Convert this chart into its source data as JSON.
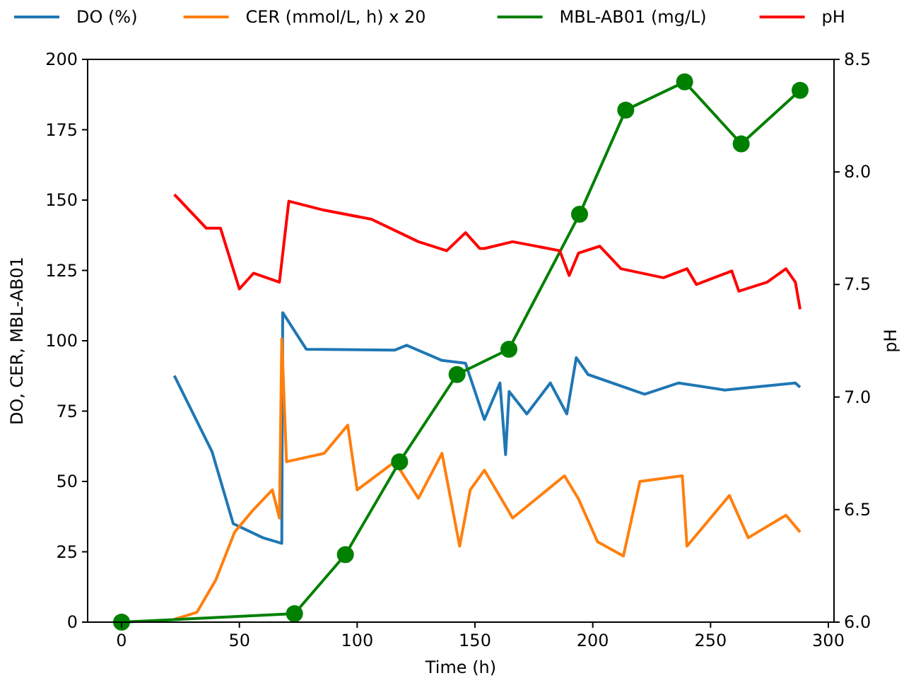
{
  "chart_data": {
    "type": "line",
    "xlabel": "Time (h)",
    "ylabel": "DO, CER, MBL-AB01",
    "y2label": "pH",
    "legend": "top",
    "grid": false,
    "xlim": [
      -14.4,
      302.4
    ],
    "xticks": [
      0,
      50,
      100,
      150,
      200,
      250,
      300
    ],
    "ylim": [
      0,
      200
    ],
    "yticks": [
      0,
      25,
      50,
      75,
      100,
      125,
      150,
      175,
      200
    ],
    "y2lim": [
      6,
      8.5
    ],
    "y2ticks": [
      {
        "value": 6,
        "label": "6.0"
      },
      {
        "value": 6.5,
        "label": "6.5"
      },
      {
        "value": 7,
        "label": "7.0"
      },
      {
        "value": 7.5,
        "label": "7.5"
      },
      {
        "value": 8,
        "label": "8.0"
      },
      {
        "value": 8.5,
        "label": "8.5"
      }
    ],
    "series": [
      {
        "name": "DO (%)",
        "color": "#1f77b4",
        "marker": "none",
        "x": [
          22.4,
          38.4,
          47.4,
          60,
          68,
          68.4,
          78.4,
          116,
          121,
          136,
          146,
          152,
          154,
          160.6,
          163,
          164.5,
          172,
          182,
          189,
          193,
          198,
          222,
          236.5,
          256,
          286,
          288
        ],
        "values": [
          87.6,
          60.6,
          35,
          30,
          28,
          110,
          97,
          96.7,
          98.4,
          93,
          92,
          77,
          72,
          85,
          59.5,
          82,
          74,
          85,
          74,
          94,
          88,
          81,
          85,
          82.5,
          85,
          83.5
        ]
      },
      {
        "name": "CER (mmol/L, h) x 20",
        "color": "#ff7f0e",
        "marker": "none",
        "x": [
          22.4,
          32,
          40,
          48,
          56,
          64,
          67,
          68,
          70,
          86,
          96,
          100,
          116,
          126,
          136,
          143.5,
          148,
          154,
          166,
          188,
          194,
          202,
          213,
          220,
          238,
          240,
          258,
          266,
          282,
          288
        ],
        "values": [
          1,
          3.5,
          15,
          32,
          40,
          47,
          37,
          100.7,
          57,
          60,
          70,
          47,
          57,
          44,
          60,
          27,
          47,
          54,
          37,
          52,
          43.7,
          28.6,
          23.5,
          50,
          52,
          27,
          45,
          30,
          38,
          32
        ]
      },
      {
        "name": "MBL-AB01 (mg/L)",
        "color": "#008000",
        "marker": "circle",
        "x": [
          0,
          73.4,
          95,
          118,
          142.4,
          164.4,
          194.4,
          214,
          239,
          263,
          288
        ],
        "values": [
          0,
          3,
          24,
          57,
          88,
          97,
          145,
          182,
          192,
          170,
          189
        ]
      },
      {
        "name": "pH",
        "color": "#ff0000",
        "marker": "none",
        "axis": "y2",
        "x": [
          22.4,
          36,
          42,
          50,
          56,
          67,
          71,
          86,
          106,
          126,
          138,
          146,
          152,
          154,
          166,
          186,
          190,
          194,
          203,
          212,
          230,
          240,
          244,
          259,
          262,
          274,
          282,
          286,
          288
        ],
        "values": [
          7.9,
          7.75,
          7.75,
          7.48,
          7.55,
          7.51,
          7.87,
          7.83,
          7.79,
          7.69,
          7.65,
          7.73,
          7.66,
          7.66,
          7.69,
          7.65,
          7.54,
          7.64,
          7.67,
          7.57,
          7.53,
          7.57,
          7.5,
          7.56,
          7.47,
          7.51,
          7.57,
          7.51,
          7.39
        ]
      }
    ]
  }
}
